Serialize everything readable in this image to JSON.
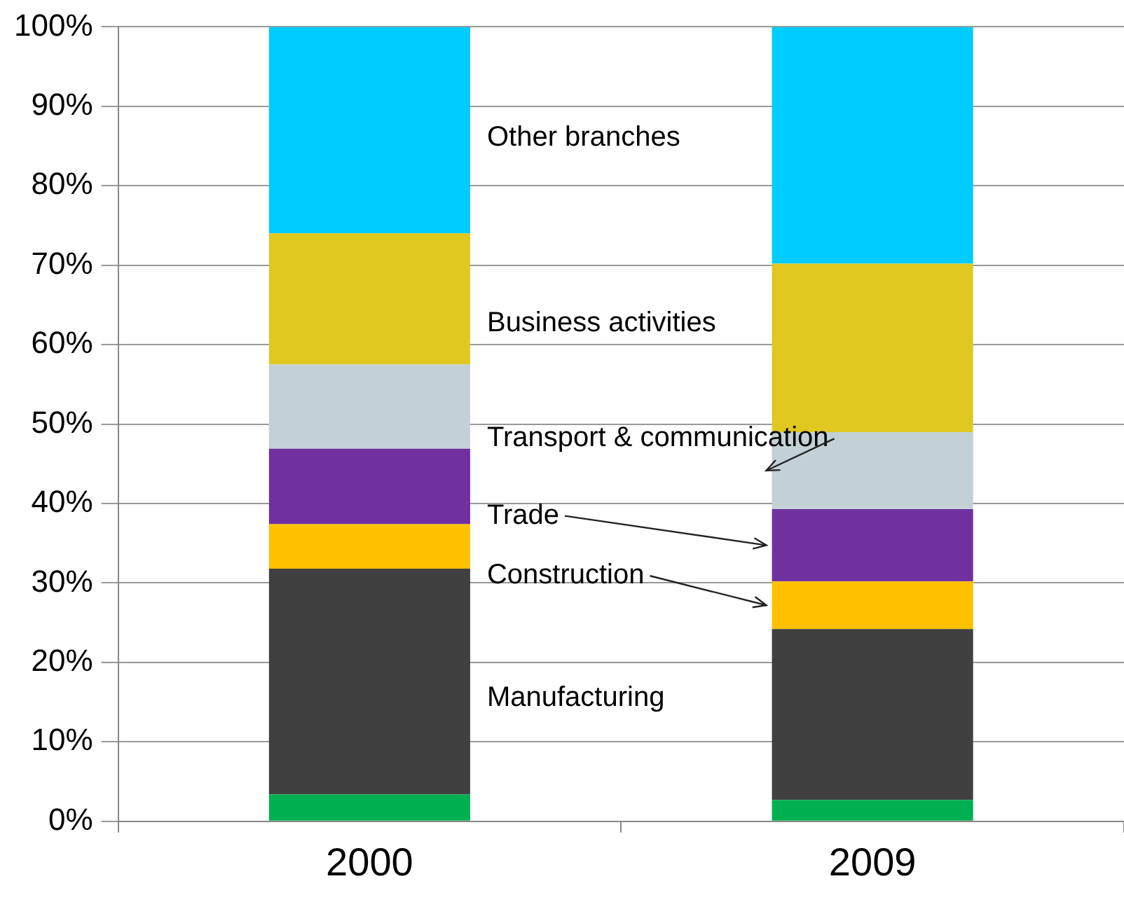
{
  "chart_data": {
    "type": "bar",
    "stacked": true,
    "categories": [
      "2000",
      "2009"
    ],
    "series": [
      {
        "color": "#00b050",
        "values": [
          3.4,
          2.7
        ]
      },
      {
        "name": "Manufacturing",
        "color": "#404040",
        "values": [
          28.4,
          21.5
        ]
      },
      {
        "name": "Construction",
        "color": "#ffc000",
        "values": [
          5.6,
          6.0
        ]
      },
      {
        "name": "Trade",
        "color": "#7030a0",
        "values": [
          9.5,
          9.1
        ]
      },
      {
        "name": "Transport & communication",
        "color": "#c3d1d6",
        "values": [
          10.6,
          9.7
        ]
      },
      {
        "name": "Business activities",
        "color": "#e0c820",
        "values": [
          16.5,
          21.2
        ]
      },
      {
        "name": "Other branches",
        "color": "#00ccff",
        "values": [
          26.0,
          29.8
        ]
      }
    ],
    "ylim": [
      0,
      100
    ],
    "yticks": [
      {
        "value": 0,
        "label": "0%"
      },
      {
        "value": 10,
        "label": "10%"
      },
      {
        "value": 20,
        "label": "20%"
      },
      {
        "value": 30,
        "label": "30%"
      },
      {
        "value": 40,
        "label": "40%"
      },
      {
        "value": 50,
        "label": "50%"
      },
      {
        "value": 60,
        "label": "60%"
      },
      {
        "value": 70,
        "label": "70%"
      },
      {
        "value": 80,
        "label": "80%"
      },
      {
        "value": 90,
        "label": "90%"
      },
      {
        "value": 100,
        "label": "100%"
      }
    ],
    "grid": "y",
    "legend": false
  }
}
